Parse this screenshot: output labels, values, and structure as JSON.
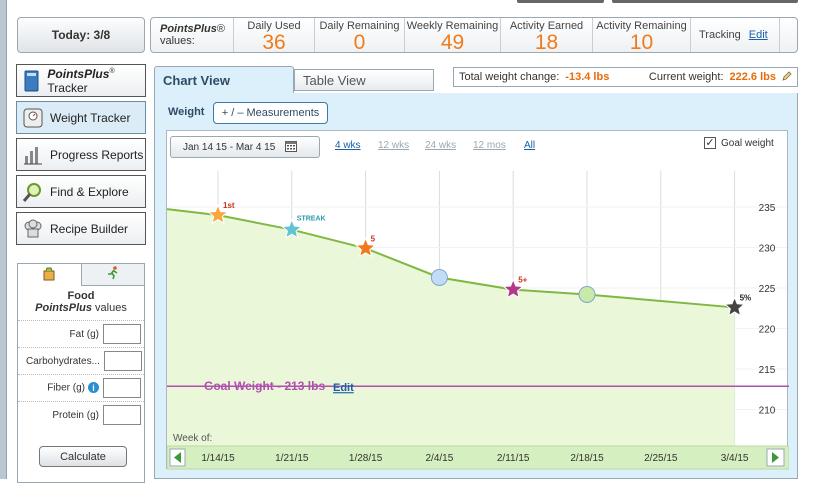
{
  "today": {
    "label": "Today: 3/8"
  },
  "points_bar": {
    "brand": "PointsPlus",
    "brand_mark": "®",
    "brand_suffix": "values:",
    "stats": [
      {
        "label": "Daily Used",
        "value": "36"
      },
      {
        "label": "Daily Remaining",
        "value": "0"
      },
      {
        "label": "Weekly Remaining",
        "value": "49"
      },
      {
        "label": "Activity Earned",
        "value": "18"
      },
      {
        "label": "Activity Remaining",
        "value": "10"
      }
    ],
    "tracking_label": "Tracking",
    "tracking_edit": "Edit"
  },
  "nav": {
    "items": [
      {
        "label_bold": "PointsPlus",
        "label_mark": "®",
        "label": " Tracker",
        "icon": "book-icon"
      },
      {
        "label": "Weight Tracker",
        "icon": "scale-icon"
      },
      {
        "label": "Progress Reports",
        "icon": "bar-chart-icon"
      },
      {
        "label": "Find & Explore",
        "icon": "magnifier-icon"
      },
      {
        "label": "Recipe Builder",
        "icon": "chef-hat-icon"
      }
    ]
  },
  "food": {
    "title": "Food",
    "subtitle_brand": "PointsPlus",
    "subtitle": " values",
    "fields": [
      {
        "label": "Fat (g)",
        "value": ""
      },
      {
        "label": "Carbohydrates...",
        "value": ""
      },
      {
        "label": "Fiber (g)",
        "value": ""
      },
      {
        "label": "Protein (g)",
        "value": ""
      }
    ],
    "calculate_label": "Calculate"
  },
  "tabs": {
    "chart_view": "Chart View",
    "table_view": "Table View"
  },
  "summary": {
    "total_change_label": "Total weight change:",
    "total_change_value": "-13.4 lbs",
    "current_label": "Current weight:",
    "current_value": "222.6 lbs"
  },
  "subnav": {
    "weight_label": "Weight",
    "measurements_label": "+ / –  Measurements"
  },
  "chart_controls": {
    "date_range": "Jan 14 15 - Mar 4 15",
    "ranges": [
      {
        "label": "4 wks",
        "active": true
      },
      {
        "label": "12 wks",
        "active": false
      },
      {
        "label": "24 wks",
        "active": false
      },
      {
        "label": "12 mos",
        "active": false
      },
      {
        "label": "All",
        "active": true
      }
    ],
    "goal_checkbox_label": "Goal weight",
    "goal_checked": true
  },
  "chart_data": {
    "type": "area",
    "x": [
      "1/14/15",
      "1/21/15",
      "1/28/15",
      "2/4/15",
      "2/11/15",
      "2/18/15",
      "2/25/15",
      "3/4/15"
    ],
    "xlabel": "Week of:",
    "y_ticks": [
      235,
      230,
      225,
      220,
      215,
      210
    ],
    "ylim": [
      208,
      239
    ],
    "series": [
      {
        "points": [
          {
            "x": "1/14/15",
            "y": 234.0,
            "marker": "star",
            "color": "#f9a63d",
            "badge": "1st"
          },
          {
            "x": "1/21/15",
            "y": 232.2,
            "marker": "star",
            "color": "#5fc4d4",
            "badge": "STREAK"
          },
          {
            "x": "1/28/15",
            "y": 229.9,
            "marker": "star",
            "color": "#f07b1c",
            "badge": "5"
          },
          {
            "x": "2/4/15",
            "y": 226.3,
            "marker": "circle",
            "color": "#c2dcf5",
            "badge": ""
          },
          {
            "x": "2/11/15",
            "y": 224.8,
            "marker": "star",
            "color": "#b3388a",
            "badge": "5+"
          },
          {
            "x": "2/18/15",
            "y": 224.2,
            "marker": "circle",
            "color": "#c8eaa8",
            "badge": ""
          },
          {
            "x": "3/4/15",
            "y": 222.6,
            "marker": "star",
            "color": "#444444",
            "badge": "5%"
          }
        ],
        "line_color": "#7fb842",
        "fill_color": "#eaf7d9"
      }
    ],
    "goal": {
      "value": 213,
      "label": "Goal Weight - 213 lbs",
      "edit": "Edit",
      "color": "#b14fb0"
    }
  }
}
